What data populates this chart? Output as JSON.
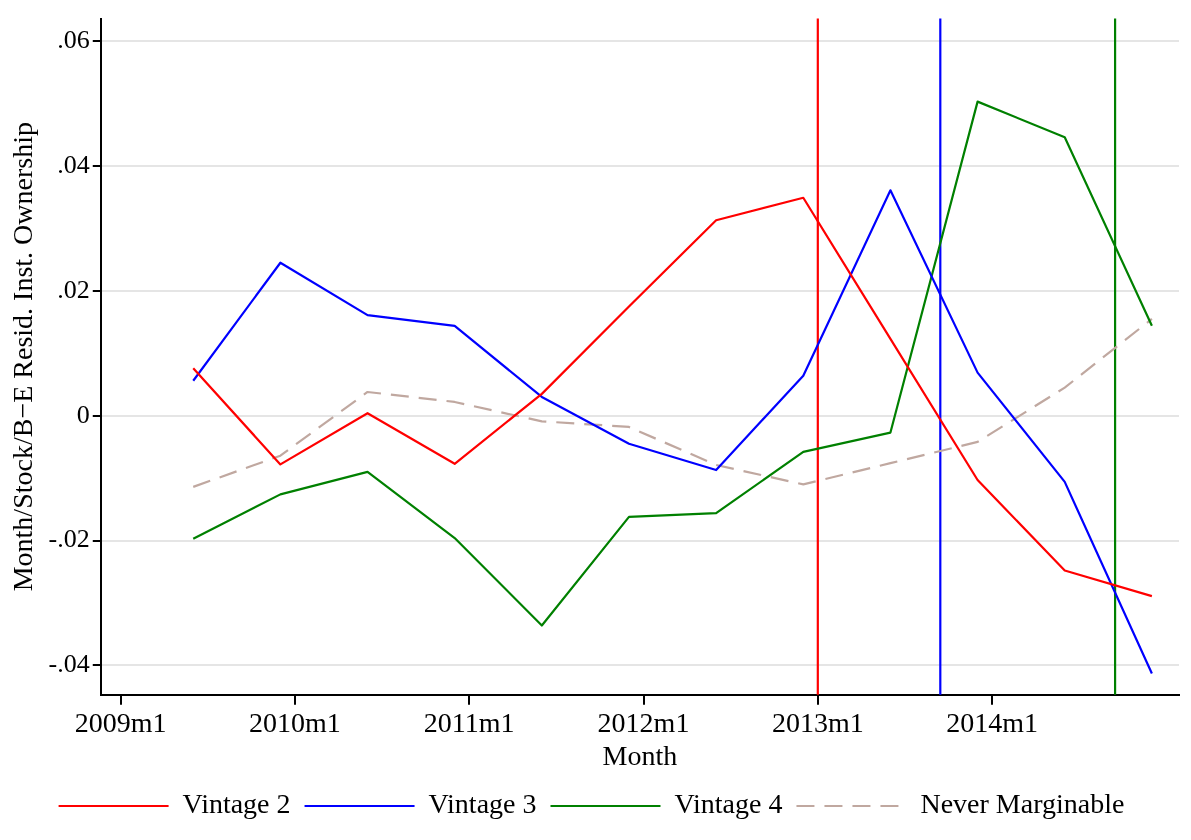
{
  "chart_data": {
    "type": "line",
    "xlabel": "Month",
    "ylabel": "Month/Stock/B−E Resid. Inst. Ownership",
    "x": [
      "2009-06",
      "2009-12",
      "2010-06",
      "2010-12",
      "2011-06",
      "2011-12",
      "2012-06",
      "2012-12",
      "2013-06",
      "2013-12",
      "2014-06",
      "2014-12"
    ],
    "series": [
      {
        "name": "Vintage 2",
        "color": "#ff0000",
        "line_style": "solid",
        "values": [
          0.0076,
          -0.0078,
          0.0004,
          -0.0077,
          0.0035,
          0.0175,
          0.0313,
          0.0349,
          0.0123,
          -0.0103,
          -0.0248,
          -0.0289
        ]
      },
      {
        "name": "Vintage 3",
        "color": "#0000ff",
        "line_style": "solid",
        "values": [
          0.0056,
          0.0245,
          0.0161,
          0.0144,
          0.003,
          -0.0045,
          -0.0087,
          0.0064,
          0.0361,
          0.0069,
          -0.0106,
          -0.0413
        ]
      },
      {
        "name": "Vintage 4",
        "color": "#008000",
        "line_style": "solid",
        "values": [
          -0.0197,
          -0.0126,
          -0.009,
          -0.0196,
          -0.0336,
          -0.0162,
          -0.0156,
          -0.0058,
          -0.0027,
          0.0503,
          0.0446,
          0.0144
        ]
      },
      {
        "name": "Never Marginable",
        "color": "#c0a8a0",
        "line_style": "dashed",
        "values": [
          -0.0114,
          -0.0064,
          0.0038,
          0.0022,
          -0.0009,
          -0.0018,
          -0.0079,
          -0.011,
          -0.0076,
          -0.0042,
          0.0045,
          0.0155
        ]
      }
    ],
    "xlim": [
      "2008-11-20",
      "2015-01-27"
    ],
    "xticks": [
      {
        "value": "2009-01",
        "label": "2009m1"
      },
      {
        "value": "2010-01",
        "label": "2010m1"
      },
      {
        "value": "2011-01",
        "label": "2011m1"
      },
      {
        "value": "2012-01",
        "label": "2012m1"
      },
      {
        "value": "2013-01",
        "label": "2013m1"
      },
      {
        "value": "2014-01",
        "label": "2014m1"
      }
    ],
    "ylim": [
      -0.0447,
      0.0636
    ],
    "yticks": [
      {
        "value": -0.04,
        "label": "-.04"
      },
      {
        "value": -0.02,
        "label": "-.02"
      },
      0,
      {
        "value": 0.02,
        "label": ".02"
      },
      {
        "value": 0.04,
        "label": ".04"
      },
      {
        "value": 0.06,
        "label": ".06"
      }
    ],
    "ref_lines": [
      {
        "axis": "x",
        "value": "2013-01",
        "color": "#ff0000"
      },
      {
        "axis": "x",
        "value": "2013-09-14",
        "color": "#0000ff"
      },
      {
        "axis": "x",
        "value": "2014-09-15",
        "color": "#008000"
      }
    ],
    "grid": "y",
    "legend": "bottom",
    "marker": "none"
  }
}
